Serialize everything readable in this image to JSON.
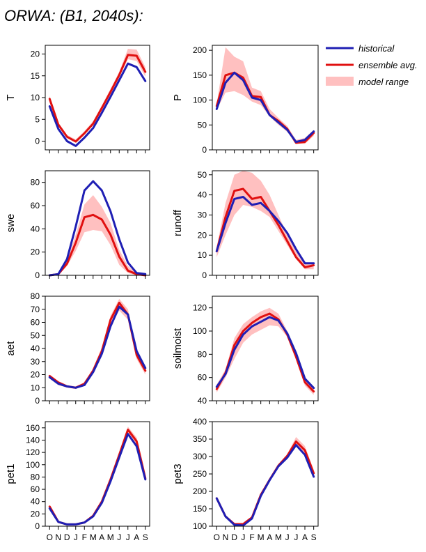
{
  "title": "ORWA:  (B1, 2040s):",
  "legend": {
    "position": "top-right",
    "entries": [
      {
        "label": "historical",
        "color": "#1f1fb4",
        "kind": "line"
      },
      {
        "label": "ensemble avg.",
        "color": "#e01010",
        "kind": "line"
      },
      {
        "label": "model range",
        "color": "#ffc0c0",
        "kind": "band"
      }
    ]
  },
  "colors": {
    "historical": "#1f1fb4",
    "ensemble": "#e01010",
    "range": "#ffc0c0"
  },
  "x_labels": [
    "O",
    "N",
    "D",
    "J",
    "F",
    "M",
    "A",
    "M",
    "J",
    "J",
    "A",
    "S"
  ],
  "chart_data": [
    {
      "type": "line",
      "ylabel": "T",
      "xlabel": "",
      "ylim": [
        -2,
        22
      ],
      "yticks": [
        0,
        5,
        10,
        15,
        20
      ],
      "categories": [
        "O",
        "N",
        "D",
        "J",
        "F",
        "M",
        "A",
        "M",
        "J",
        "J",
        "A",
        "S"
      ],
      "series": [
        {
          "name": "historical",
          "values": [
            8.0,
            2.8,
            0.0,
            -1.1,
            0.8,
            3.0,
            6.5,
            10.2,
            14.0,
            17.8,
            17.0,
            13.8
          ]
        },
        {
          "name": "ensemble avg.",
          "values": [
            9.7,
            3.8,
            1.0,
            -0.1,
            1.8,
            4.0,
            7.6,
            11.3,
            15.2,
            19.8,
            19.6,
            15.9
          ]
        }
      ],
      "range_low": [
        8.8,
        3.4,
        0.7,
        -0.3,
        1.5,
        3.7,
        7.2,
        10.8,
        14.6,
        18.8,
        18.4,
        14.8
      ],
      "range_high": [
        10.4,
        4.2,
        1.4,
        0.4,
        2.3,
        4.6,
        8.2,
        12.0,
        15.9,
        21.2,
        21.0,
        17.0
      ]
    },
    {
      "type": "line",
      "ylabel": "P",
      "xlabel": "",
      "ylim": [
        0,
        210
      ],
      "yticks": [
        0,
        50,
        100,
        150,
        200
      ],
      "categories": [
        "O",
        "N",
        "D",
        "J",
        "F",
        "M",
        "A",
        "M",
        "J",
        "J",
        "A",
        "S"
      ],
      "series": [
        {
          "name": "historical",
          "values": [
            82,
            135,
            155,
            140,
            105,
            100,
            70,
            55,
            40,
            16,
            20,
            37
          ]
        },
        {
          "name": "ensemble avg.",
          "values": [
            88,
            150,
            155,
            145,
            108,
            106,
            70,
            58,
            42,
            14,
            16,
            34
          ]
        }
      ],
      "range_low": [
        80,
        115,
        118,
        110,
        97,
        90,
        67,
        50,
        36,
        13,
        12,
        28
      ],
      "range_high": [
        92,
        206,
        187,
        178,
        125,
        118,
        82,
        64,
        48,
        20,
        24,
        40
      ]
    },
    {
      "type": "line",
      "ylabel": "swe",
      "xlabel": "",
      "ylim": [
        0,
        90
      ],
      "yticks": [
        0,
        20,
        40,
        60,
        80
      ],
      "categories": [
        "O",
        "N",
        "D",
        "J",
        "F",
        "M",
        "A",
        "M",
        "J",
        "J",
        "A",
        "S"
      ],
      "series": [
        {
          "name": "historical",
          "values": [
            0,
            1,
            14,
            42,
            73,
            81,
            73,
            55,
            31,
            11,
            2,
            1
          ]
        },
        {
          "name": "ensemble avg.",
          "values": [
            0,
            1,
            10,
            28,
            50,
            52,
            48,
            35,
            16,
            4,
            1,
            0
          ]
        }
      ],
      "range_low": [
        0,
        0,
        8,
        21,
        37,
        39,
        38,
        26,
        9,
        2,
        0,
        0
      ],
      "range_high": [
        0,
        2,
        13,
        35,
        61,
        69,
        59,
        45,
        22,
        8,
        2,
        1
      ]
    },
    {
      "type": "line",
      "ylabel": "runoff",
      "xlabel": "",
      "ylim": [
        0,
        52
      ],
      "yticks": [
        0,
        10,
        20,
        30,
        40,
        50
      ],
      "categories": [
        "O",
        "N",
        "D",
        "J",
        "F",
        "M",
        "A",
        "M",
        "J",
        "J",
        "A",
        "S"
      ],
      "series": [
        {
          "name": "historical",
          "values": [
            12,
            26,
            38,
            39,
            35,
            36,
            32,
            27,
            21,
            13,
            6,
            6
          ]
        },
        {
          "name": "ensemble avg.",
          "values": [
            12,
            29,
            42,
            43,
            38,
            39,
            32,
            25,
            17,
            9,
            4,
            5
          ]
        }
      ],
      "range_low": [
        9,
        20,
        30,
        35,
        34,
        32,
        29,
        22,
        15,
        8,
        3,
        3
      ],
      "range_high": [
        14,
        36,
        50,
        52,
        51,
        47,
        40,
        30,
        20,
        12,
        6,
        6
      ]
    },
    {
      "type": "line",
      "ylabel": "aet",
      "xlabel": "",
      "ylim": [
        0,
        80
      ],
      "yticks": [
        0,
        10,
        20,
        30,
        40,
        50,
        60,
        70,
        80
      ],
      "categories": [
        "O",
        "N",
        "D",
        "J",
        "F",
        "M",
        "A",
        "M",
        "J",
        "J",
        "A",
        "S"
      ],
      "series": [
        {
          "name": "historical",
          "values": [
            18,
            13,
            11,
            10,
            12,
            22,
            36,
            57,
            72,
            66,
            38,
            25
          ]
        },
        {
          "name": "ensemble avg.",
          "values": [
            19,
            14,
            11,
            10,
            13,
            23,
            38,
            62,
            75,
            66,
            35,
            23
          ]
        }
      ],
      "range_low": [
        17,
        12,
        10,
        9,
        12,
        21,
        34,
        57,
        69,
        62,
        32,
        20
      ],
      "range_high": [
        20,
        15,
        12,
        11,
        14,
        25,
        41,
        65,
        78,
        70,
        39,
        26
      ]
    },
    {
      "type": "line",
      "ylabel": "soilmoist",
      "xlabel": "",
      "ylim": [
        40,
        130
      ],
      "yticks": [
        40,
        60,
        80,
        100,
        120
      ],
      "categories": [
        "O",
        "N",
        "D",
        "J",
        "F",
        "M",
        "A",
        "M",
        "J",
        "J",
        "A",
        "S"
      ],
      "series": [
        {
          "name": "historical",
          "values": [
            52,
            63,
            84,
            97,
            104,
            108,
            112,
            109,
            98,
            81,
            59,
            51
          ]
        },
        {
          "name": "ensemble avg.",
          "values": [
            50,
            64,
            88,
            100,
            107,
            112,
            115,
            110,
            97,
            78,
            56,
            48
          ]
        }
      ],
      "range_low": [
        47,
        60,
        76,
        90,
        97,
        101,
        105,
        104,
        95,
        75,
        53,
        45
      ],
      "range_high": [
        54,
        67,
        94,
        106,
        112,
        117,
        120,
        115,
        100,
        82,
        59,
        52
      ]
    },
    {
      "type": "line",
      "ylabel": "pet1",
      "xlabel": "",
      "ylim": [
        0,
        170
      ],
      "yticks": [
        0,
        20,
        40,
        60,
        80,
        100,
        120,
        140,
        160
      ],
      "categories": [
        "O",
        "N",
        "D",
        "J",
        "F",
        "M",
        "A",
        "M",
        "J",
        "J",
        "A",
        "S"
      ],
      "series": [
        {
          "name": "historical",
          "values": [
            29,
            7,
            3,
            3,
            6,
            16,
            38,
            73,
            112,
            150,
            130,
            76
          ]
        },
        {
          "name": "ensemble avg.",
          "values": [
            32,
            7,
            3,
            3,
            6,
            17,
            40,
            76,
            116,
            157,
            138,
            78
          ]
        }
      ],
      "range_low": [
        27,
        6,
        3,
        3,
        6,
        15,
        37,
        72,
        111,
        150,
        131,
        74
      ],
      "range_high": [
        34,
        8,
        4,
        4,
        7,
        18,
        42,
        79,
        120,
        162,
        144,
        82
      ]
    },
    {
      "type": "line",
      "ylabel": "pet3",
      "xlabel": "",
      "ylim": [
        100,
        400
      ],
      "yticks": [
        100,
        150,
        200,
        250,
        300,
        350,
        400
      ],
      "categories": [
        "O",
        "N",
        "D",
        "J",
        "F",
        "M",
        "A",
        "M",
        "J",
        "J",
        "A",
        "S"
      ],
      "series": [
        {
          "name": "historical",
          "values": [
            180,
            128,
            104,
            102,
            122,
            187,
            232,
            272,
            297,
            333,
            305,
            242
          ]
        },
        {
          "name": "ensemble avg.",
          "values": [
            180,
            128,
            106,
            106,
            125,
            190,
            233,
            274,
            302,
            343,
            318,
            252
          ]
        }
      ],
      "range_low": [
        177,
        126,
        103,
        102,
        122,
        186,
        230,
        270,
        296,
        332,
        305,
        240
      ],
      "range_high": [
        182,
        130,
        108,
        108,
        128,
        193,
        236,
        278,
        307,
        356,
        330,
        262
      ]
    }
  ]
}
